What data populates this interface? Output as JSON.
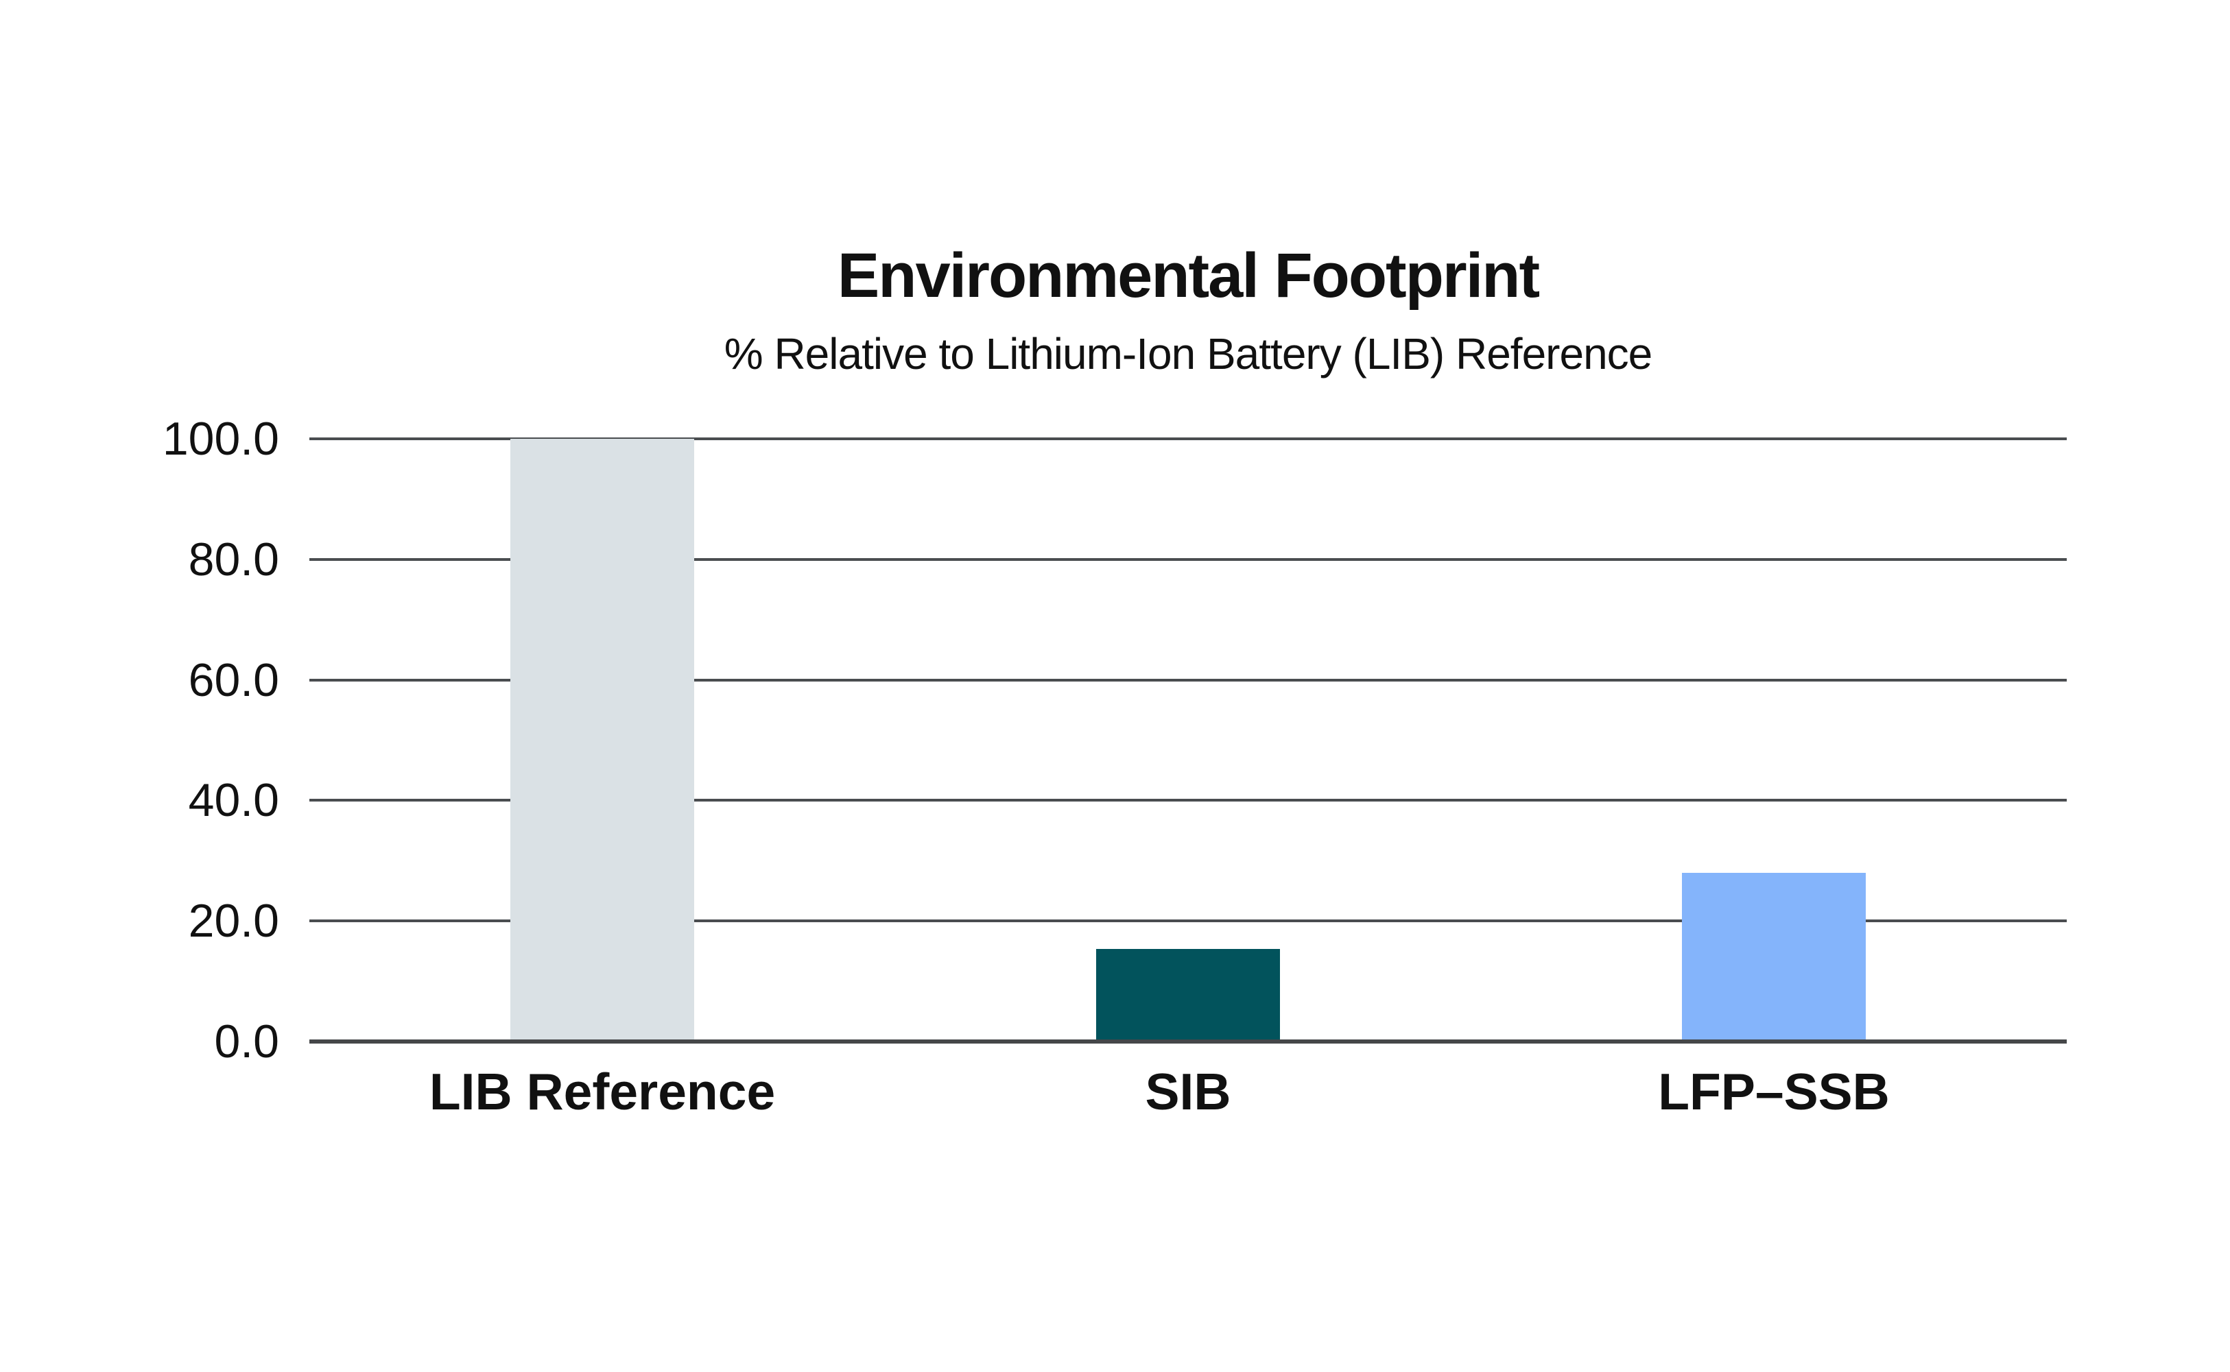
{
  "chart_data": {
    "type": "bar",
    "title": "Environmental Footprint",
    "subtitle": "% Relative to Lithium-Ion Battery (LIB) Reference",
    "categories": [
      "LIB Reference",
      "SIB",
      "LFP–SSB"
    ],
    "values": [
      100.0,
      15.4,
      28.0
    ],
    "bar_colors": [
      "#dae1e5",
      "#02535c",
      "#84b4fb"
    ],
    "xlabel": "",
    "ylabel": "",
    "ylim": [
      0,
      100
    ],
    "yticks": [
      0,
      20,
      40,
      60,
      80,
      100
    ],
    "ytick_labels": [
      "0.0",
      "20.0",
      "40.0",
      "60.0",
      "80.0",
      "100.0"
    ],
    "grid": true,
    "legend": false,
    "background_color": "#ffffff",
    "gridline_color": "#4a4d50",
    "axis_line_color": "#454749",
    "text_color": "#111111"
  }
}
